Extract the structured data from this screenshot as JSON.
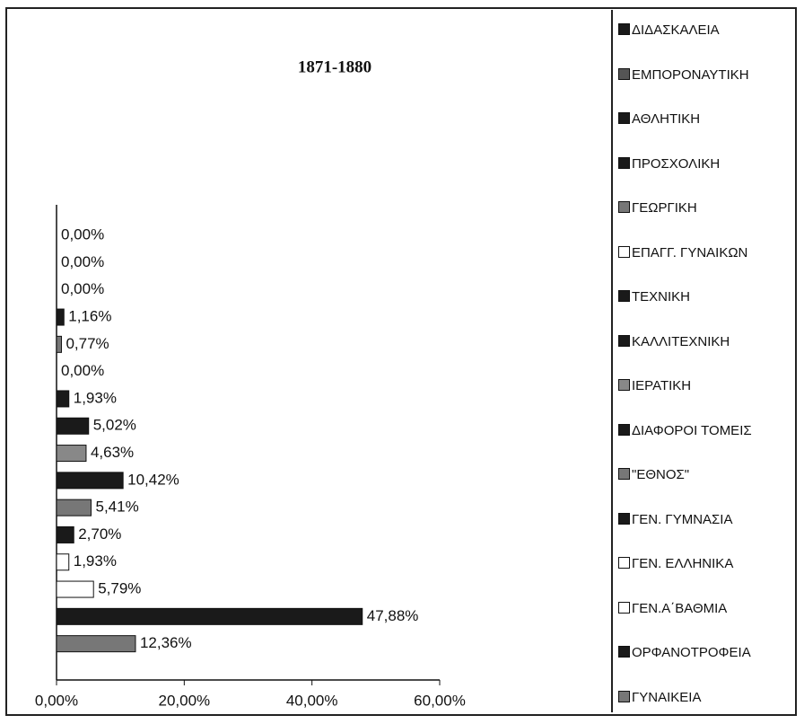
{
  "chart_data": {
    "type": "hbar",
    "title": "1871-1880",
    "categories": [
      "ΔΙΔΑΣΚΑΛΕΙΑ",
      "ΕΜΠΟΡΟΝΑΥΤΙΚΗ",
      "ΑΘΛΗΤΙΚΗ",
      "ΠΡΟΣΧΟΛΙΚΗ",
      "ΓΕΩΡΓΙΚΗ",
      "ΕΠΑΓΓ. ΓΥΝΑΙΚΩΝ",
      "ΤΕΧΝΙΚΗ",
      "ΚΑΛΛΙΤΕΧΝΙΚΗ",
      "ΙΕΡΑΤΙΚΗ",
      "ΔΙΑΦΟΡΟΙ ΤΟΜΕΙΣ",
      "\"ΕΘΝΟΣ\"",
      "ΓΕΝ. ΓΥΜΝΑΣΙΑ",
      "ΓΕΝ. ΕΛΛΗΝΙΚΑ",
      "ΓΕΝ.Α΄ΒΑΘΜΙΑ",
      "ΟΡΦΑΝΟΤΡΟΦΕΙΑ",
      "ΓΥΝΑΙΚΕΙΑ"
    ],
    "values": [
      0,
      0,
      0,
      1.16,
      0.77,
      0,
      1.93,
      5.02,
      4.63,
      10.42,
      5.41,
      2.7,
      1.93,
      5.79,
      47.88,
      12.36
    ],
    "value_labels": [
      "0,00%",
      "0,00%",
      "0,00%",
      "1,16%",
      "0,77%",
      "0,00%",
      "1,93%",
      "5,02%",
      "4,63%",
      "10,42%",
      "5,41%",
      "2,70%",
      "1,93%",
      "5,79%",
      "47,88%",
      "12,36%"
    ],
    "colors": [
      "#1a1a1a",
      "#555555",
      "#1a1a1a",
      "#1a1a1a",
      "#777777",
      "#ffffff",
      "#1a1a1a",
      "#1a1a1a",
      "#888888",
      "#1a1a1a",
      "#777777",
      "#1a1a1a",
      "#ffffff",
      "#ffffff",
      "#1a1a1a",
      "#777777"
    ],
    "xlim": [
      0,
      60
    ],
    "xticks": [
      {
        "value": 0,
        "label": "0,00%"
      },
      {
        "value": 20,
        "label": "20,00%"
      },
      {
        "value": 40,
        "label": "40,00%"
      },
      {
        "value": 60,
        "label": "60,00%"
      }
    ]
  }
}
